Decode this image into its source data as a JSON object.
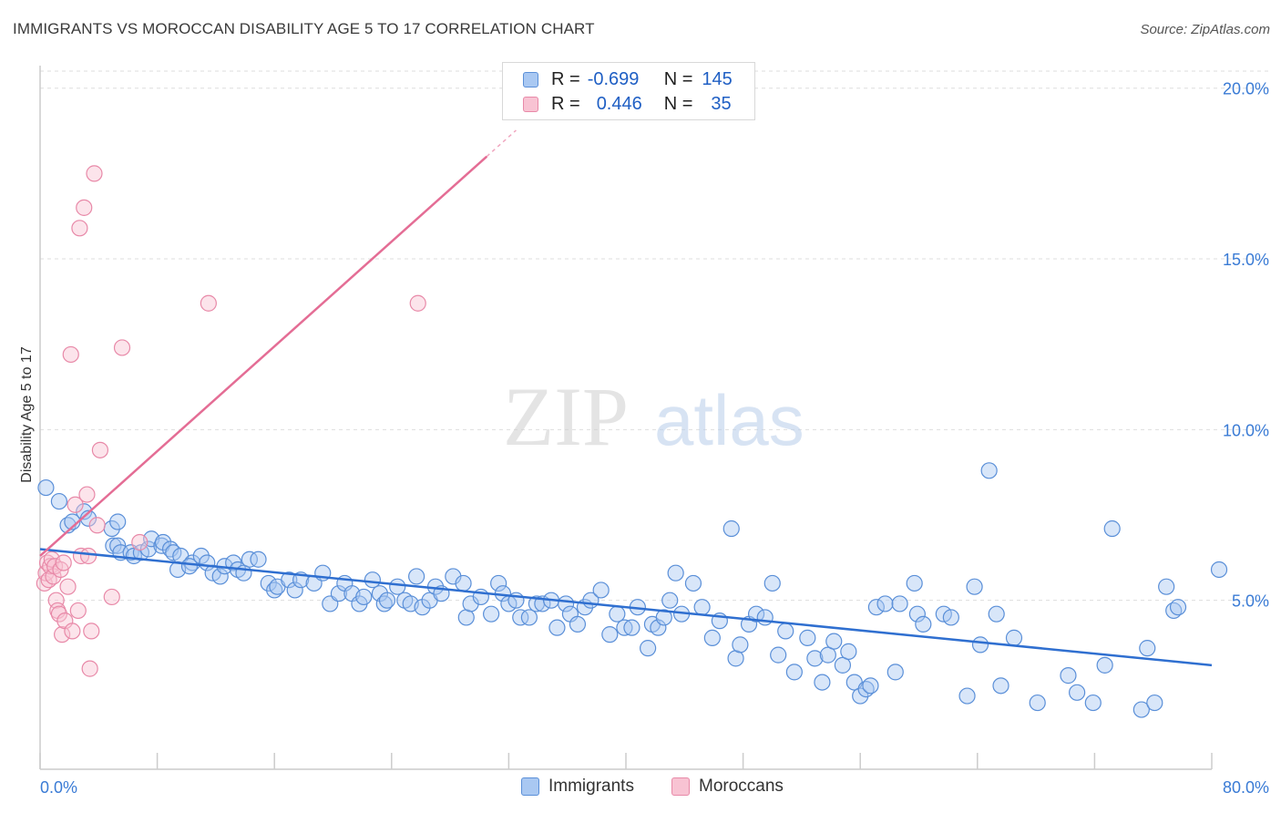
{
  "title": "IMMIGRANTS VS MOROCCAN DISABILITY AGE 5 TO 17 CORRELATION CHART",
  "source": "Source: ZipAtlas.com",
  "watermark": {
    "zip": "ZIP",
    "atlas": "atlas"
  },
  "legend_top": {
    "rows": [
      {
        "r_label": "R =",
        "r_value": "-0.699",
        "n_label": "N =",
        "n_value": "145",
        "color": "#5a8fd8"
      },
      {
        "r_label": "R =",
        "r_value": "0.446",
        "n_label": "N =",
        "n_value": "35",
        "color": "#e889a8"
      }
    ]
  },
  "legend_bottom": [
    {
      "label": "Immigrants",
      "color": "#5a8fd8"
    },
    {
      "label": "Moroccans",
      "color": "#e889a8"
    }
  ],
  "chart_data": {
    "type": "scatter",
    "title": "IMMIGRANTS VS MOROCCAN DISABILITY AGE 5 TO 17 CORRELATION CHART",
    "xlabel": "",
    "ylabel": "Disability Age 5 to 17",
    "xlim": [
      0,
      80
    ],
    "ylim": [
      0,
      20.5
    ],
    "x_tick_labels": [
      "0.0%",
      "80.0%"
    ],
    "y_ticks": [
      5,
      10,
      15,
      20
    ],
    "y_tick_labels": [
      "5.0%",
      "10.0%",
      "15.0%",
      "20.0%"
    ],
    "grid": "horizontal dashed",
    "legend_position": "top-center",
    "series": [
      {
        "name": "Immigrants",
        "color": "#5a8fd8",
        "trend": {
          "x": [
            0,
            80
          ],
          "y": [
            6.5,
            3.1
          ]
        },
        "points": [
          [
            0.4,
            8.3
          ],
          [
            1.3,
            7.9
          ],
          [
            1.9,
            7.2
          ],
          [
            2.2,
            7.3
          ],
          [
            3.0,
            7.6
          ],
          [
            3.3,
            7.4
          ],
          [
            4.9,
            7.1
          ],
          [
            5.3,
            7.3
          ],
          [
            5.0,
            6.6
          ],
          [
            5.3,
            6.6
          ],
          [
            5.5,
            6.4
          ],
          [
            6.2,
            6.4
          ],
          [
            6.4,
            6.3
          ],
          [
            6.9,
            6.4
          ],
          [
            7.4,
            6.5
          ],
          [
            7.6,
            6.8
          ],
          [
            8.3,
            6.6
          ],
          [
            8.4,
            6.7
          ],
          [
            8.9,
            6.5
          ],
          [
            9.1,
            6.4
          ],
          [
            9.6,
            6.3
          ],
          [
            9.4,
            5.9
          ],
          [
            10.4,
            6.1
          ],
          [
            10.2,
            6.0
          ],
          [
            11.0,
            6.3
          ],
          [
            11.4,
            6.1
          ],
          [
            11.8,
            5.8
          ],
          [
            12.3,
            5.7
          ],
          [
            12.6,
            6.0
          ],
          [
            13.2,
            6.1
          ],
          [
            13.5,
            5.9
          ],
          [
            13.9,
            5.8
          ],
          [
            14.3,
            6.2
          ],
          [
            14.9,
            6.2
          ],
          [
            15.6,
            5.5
          ],
          [
            16.0,
            5.3
          ],
          [
            16.2,
            5.4
          ],
          [
            17.0,
            5.6
          ],
          [
            17.4,
            5.3
          ],
          [
            17.8,
            5.6
          ],
          [
            18.7,
            5.5
          ],
          [
            19.3,
            5.8
          ],
          [
            19.8,
            4.9
          ],
          [
            20.4,
            5.2
          ],
          [
            20.8,
            5.5
          ],
          [
            21.3,
            5.2
          ],
          [
            21.8,
            4.9
          ],
          [
            22.1,
            5.1
          ],
          [
            22.7,
            5.6
          ],
          [
            23.2,
            5.2
          ],
          [
            23.5,
            4.9
          ],
          [
            23.7,
            5.0
          ],
          [
            24.4,
            5.4
          ],
          [
            24.9,
            5.0
          ],
          [
            25.3,
            4.9
          ],
          [
            25.7,
            5.7
          ],
          [
            26.1,
            4.8
          ],
          [
            26.6,
            5.0
          ],
          [
            27.0,
            5.4
          ],
          [
            27.4,
            5.2
          ],
          [
            28.2,
            5.7
          ],
          [
            28.9,
            5.5
          ],
          [
            29.1,
            4.5
          ],
          [
            29.4,
            4.9
          ],
          [
            30.1,
            5.1
          ],
          [
            30.8,
            4.6
          ],
          [
            31.3,
            5.5
          ],
          [
            31.6,
            5.2
          ],
          [
            32.0,
            4.9
          ],
          [
            32.5,
            5.0
          ],
          [
            32.8,
            4.5
          ],
          [
            33.4,
            4.5
          ],
          [
            33.9,
            4.9
          ],
          [
            34.3,
            4.9
          ],
          [
            34.9,
            5.0
          ],
          [
            35.3,
            4.2
          ],
          [
            35.9,
            4.9
          ],
          [
            36.2,
            4.6
          ],
          [
            36.7,
            4.3
          ],
          [
            37.2,
            4.8
          ],
          [
            37.6,
            5.0
          ],
          [
            38.3,
            5.3
          ],
          [
            38.9,
            4.0
          ],
          [
            39.4,
            4.6
          ],
          [
            39.9,
            4.2
          ],
          [
            40.4,
            4.2
          ],
          [
            40.8,
            4.8
          ],
          [
            41.5,
            3.6
          ],
          [
            41.8,
            4.3
          ],
          [
            42.2,
            4.2
          ],
          [
            42.6,
            4.5
          ],
          [
            43.0,
            5.0
          ],
          [
            43.4,
            5.8
          ],
          [
            43.8,
            4.6
          ],
          [
            44.6,
            5.5
          ],
          [
            45.2,
            4.8
          ],
          [
            45.9,
            3.9
          ],
          [
            46.4,
            4.4
          ],
          [
            47.2,
            7.1
          ],
          [
            47.5,
            3.3
          ],
          [
            47.8,
            3.7
          ],
          [
            48.4,
            4.3
          ],
          [
            48.9,
            4.6
          ],
          [
            49.5,
            4.5
          ],
          [
            50.0,
            5.5
          ],
          [
            50.4,
            3.4
          ],
          [
            50.9,
            4.1
          ],
          [
            51.5,
            2.9
          ],
          [
            52.4,
            3.9
          ],
          [
            52.9,
            3.3
          ],
          [
            53.4,
            2.6
          ],
          [
            53.8,
            3.4
          ],
          [
            54.2,
            3.8
          ],
          [
            54.8,
            3.1
          ],
          [
            55.2,
            3.5
          ],
          [
            55.6,
            2.6
          ],
          [
            56.0,
            2.2
          ],
          [
            56.4,
            2.4
          ],
          [
            56.7,
            2.5
          ],
          [
            57.1,
            4.8
          ],
          [
            57.7,
            4.9
          ],
          [
            58.4,
            2.9
          ],
          [
            58.7,
            4.9
          ],
          [
            59.7,
            5.5
          ],
          [
            59.9,
            4.6
          ],
          [
            60.3,
            4.3
          ],
          [
            61.7,
            4.6
          ],
          [
            62.2,
            4.5
          ],
          [
            63.3,
            2.2
          ],
          [
            63.8,
            5.4
          ],
          [
            64.2,
            3.7
          ],
          [
            64.8,
            8.8
          ],
          [
            65.3,
            4.6
          ],
          [
            65.6,
            2.5
          ],
          [
            66.5,
            3.9
          ],
          [
            68.1,
            2.0
          ],
          [
            70.2,
            2.8
          ],
          [
            70.8,
            2.3
          ],
          [
            71.9,
            2.0
          ],
          [
            72.7,
            3.1
          ],
          [
            73.2,
            7.1
          ],
          [
            75.2,
            1.8
          ],
          [
            75.6,
            3.6
          ],
          [
            76.1,
            2.0
          ],
          [
            76.9,
            5.4
          ],
          [
            77.4,
            4.7
          ],
          [
            77.7,
            4.8
          ],
          [
            80.5,
            5.9
          ]
        ]
      },
      {
        "name": "Moroccans",
        "color": "#e889a8",
        "trend": {
          "x": [
            0,
            30.5
          ],
          "y": [
            6.3,
            18.0
          ]
        },
        "points": [
          [
            0.3,
            5.5
          ],
          [
            0.4,
            5.8
          ],
          [
            0.5,
            6.1
          ],
          [
            0.6,
            5.6
          ],
          [
            0.7,
            6.0
          ],
          [
            0.8,
            6.2
          ],
          [
            0.9,
            5.7
          ],
          [
            1.0,
            6.0
          ],
          [
            1.1,
            5.0
          ],
          [
            1.2,
            4.7
          ],
          [
            1.3,
            4.6
          ],
          [
            1.4,
            5.9
          ],
          [
            1.5,
            4.0
          ],
          [
            1.6,
            6.1
          ],
          [
            1.7,
            4.4
          ],
          [
            1.9,
            5.4
          ],
          [
            2.1,
            12.2
          ],
          [
            2.2,
            4.1
          ],
          [
            2.4,
            7.8
          ],
          [
            2.6,
            4.7
          ],
          [
            2.7,
            15.9
          ],
          [
            2.8,
            6.3
          ],
          [
            3.0,
            16.5
          ],
          [
            3.2,
            8.1
          ],
          [
            3.3,
            6.3
          ],
          [
            3.4,
            3.0
          ],
          [
            3.5,
            4.1
          ],
          [
            3.7,
            17.5
          ],
          [
            3.9,
            7.2
          ],
          [
            4.1,
            9.4
          ],
          [
            4.9,
            5.1
          ],
          [
            5.6,
            12.4
          ],
          [
            6.8,
            6.7
          ],
          [
            11.5,
            13.7
          ],
          [
            25.8,
            13.7
          ]
        ]
      }
    ]
  }
}
